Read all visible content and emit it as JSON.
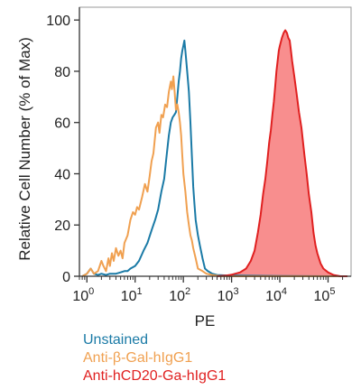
{
  "chart_data": {
    "type": "area",
    "xlabel": "PE",
    "ylabel": "Relative Cell Number (% of Max)",
    "xscale": "log",
    "xlim": [
      0.7,
      300000
    ],
    "ylim": [
      0,
      105
    ],
    "grid": false,
    "legend_placement": "bottom-left",
    "x_ticks": [
      {
        "value": 1,
        "base": "10",
        "exp": "0"
      },
      {
        "value": 10,
        "base": "10",
        "exp": "1"
      },
      {
        "value": 100,
        "base": "10",
        "exp": "2"
      },
      {
        "value": 1000,
        "base": "10",
        "exp": "3"
      },
      {
        "value": 10000,
        "base": "10",
        "exp": "4"
      },
      {
        "value": 100000,
        "base": "10",
        "exp": "5"
      }
    ],
    "y_ticks": [
      {
        "value": 0,
        "label": "0"
      },
      {
        "value": 20,
        "label": "20"
      },
      {
        "value": 40,
        "label": "40"
      },
      {
        "value": 60,
        "label": "60"
      },
      {
        "value": 80,
        "label": "80"
      },
      {
        "value": 100,
        "label": "100"
      }
    ],
    "series": [
      {
        "name": "Unstained",
        "color": "#1a7aa6",
        "fill": false,
        "points": [
          [
            0.8,
            0
          ],
          [
            1,
            1
          ],
          [
            1.2,
            3
          ],
          [
            1.4,
            1
          ],
          [
            1.7,
            0.5
          ],
          [
            2,
            1
          ],
          [
            2.5,
            0.5
          ],
          [
            3,
            1
          ],
          [
            4,
            1
          ],
          [
            5,
            1.5
          ],
          [
            6,
            2
          ],
          [
            7,
            2
          ],
          [
            8,
            3
          ],
          [
            10,
            4
          ],
          [
            12,
            6
          ],
          [
            15,
            10
          ],
          [
            18,
            13
          ],
          [
            22,
            18
          ],
          [
            26,
            22
          ],
          [
            30,
            26
          ],
          [
            35,
            33
          ],
          [
            40,
            38
          ],
          [
            45,
            47
          ],
          [
            50,
            55
          ],
          [
            55,
            60
          ],
          [
            60,
            62
          ],
          [
            65,
            63
          ],
          [
            70,
            64
          ],
          [
            75,
            70
          ],
          [
            80,
            76
          ],
          [
            85,
            80
          ],
          [
            90,
            85
          ],
          [
            95,
            88
          ],
          [
            100,
            90
          ],
          [
            105,
            92
          ],
          [
            110,
            88
          ],
          [
            120,
            80
          ],
          [
            130,
            72
          ],
          [
            140,
            60
          ],
          [
            150,
            47
          ],
          [
            160,
            35
          ],
          [
            170,
            28
          ],
          [
            180,
            22
          ],
          [
            200,
            16
          ],
          [
            220,
            12
          ],
          [
            250,
            7
          ],
          [
            280,
            3
          ],
          [
            320,
            2
          ],
          [
            400,
            1
          ],
          [
            500,
            0.5
          ],
          [
            800,
            0.3
          ],
          [
            2000,
            0.2
          ],
          [
            10000,
            0.1
          ],
          [
            100000,
            0
          ],
          [
            250000,
            0
          ]
        ]
      },
      {
        "name": "Anti-β-Gal-hIgG1",
        "color": "#f0a050",
        "fill": false,
        "points": [
          [
            0.8,
            0
          ],
          [
            1,
            1
          ],
          [
            1.2,
            3
          ],
          [
            1.4,
            1
          ],
          [
            1.7,
            2
          ],
          [
            2,
            6
          ],
          [
            2.2,
            4
          ],
          [
            2.5,
            2
          ],
          [
            2.8,
            7
          ],
          [
            3,
            4
          ],
          [
            3.3,
            9
          ],
          [
            3.6,
            6
          ],
          [
            4,
            11
          ],
          [
            4.5,
            8
          ],
          [
            5,
            10
          ],
          [
            5.5,
            7
          ],
          [
            6,
            13
          ],
          [
            7,
            16
          ],
          [
            8,
            22
          ],
          [
            9,
            25
          ],
          [
            10,
            24
          ],
          [
            11,
            27
          ],
          [
            12,
            26
          ],
          [
            14,
            31
          ],
          [
            16,
            36
          ],
          [
            18,
            33
          ],
          [
            20,
            39
          ],
          [
            22,
            45
          ],
          [
            24,
            48
          ],
          [
            27,
            58
          ],
          [
            30,
            60
          ],
          [
            32,
            56
          ],
          [
            35,
            63
          ],
          [
            38,
            62
          ],
          [
            42,
            67
          ],
          [
            46,
            66
          ],
          [
            50,
            72
          ],
          [
            55,
            76
          ],
          [
            58,
            73
          ],
          [
            62,
            78
          ],
          [
            66,
            72
          ],
          [
            70,
            65
          ],
          [
            75,
            67
          ],
          [
            80,
            64
          ],
          [
            85,
            60
          ],
          [
            90,
            55
          ],
          [
            95,
            47
          ],
          [
            100,
            40
          ],
          [
            110,
            33
          ],
          [
            120,
            25
          ],
          [
            130,
            20
          ],
          [
            140,
            16
          ],
          [
            150,
            14
          ],
          [
            160,
            11
          ],
          [
            180,
            7
          ],
          [
            200,
            3
          ],
          [
            250,
            2
          ],
          [
            300,
            1
          ],
          [
            400,
            0.5
          ],
          [
            600,
            0
          ],
          [
            250000,
            0
          ]
        ]
      },
      {
        "name": "Anti-hCD20-Ga-hIgG1",
        "color": "#e02020",
        "fill": true,
        "fill_color": "#f88e8e",
        "points": [
          [
            500,
            0
          ],
          [
            800,
            0.3
          ],
          [
            1000,
            0.6
          ],
          [
            1500,
            1.5
          ],
          [
            2000,
            3
          ],
          [
            2500,
            6
          ],
          [
            3000,
            10
          ],
          [
            3500,
            17
          ],
          [
            4000,
            24
          ],
          [
            4500,
            32
          ],
          [
            5000,
            38
          ],
          [
            5500,
            45
          ],
          [
            6000,
            52
          ],
          [
            6500,
            57
          ],
          [
            7000,
            63
          ],
          [
            7500,
            68
          ],
          [
            8000,
            74
          ],
          [
            8500,
            80
          ],
          [
            9000,
            84
          ],
          [
            9500,
            88
          ],
          [
            10000,
            90
          ],
          [
            11000,
            93
          ],
          [
            12000,
            95
          ],
          [
            13000,
            96
          ],
          [
            14000,
            95
          ],
          [
            15000,
            93
          ],
          [
            16000,
            92
          ],
          [
            17000,
            88
          ],
          [
            18000,
            84
          ],
          [
            20000,
            78
          ],
          [
            22000,
            72
          ],
          [
            25000,
            64
          ],
          [
            28000,
            58
          ],
          [
            32000,
            48
          ],
          [
            36000,
            40
          ],
          [
            40000,
            32
          ],
          [
            45000,
            25
          ],
          [
            50000,
            17
          ],
          [
            55000,
            12
          ],
          [
            60000,
            9
          ],
          [
            70000,
            5
          ],
          [
            80000,
            3
          ],
          [
            100000,
            1.5
          ],
          [
            130000,
            0.5
          ],
          [
            180000,
            0
          ],
          [
            250000,
            0
          ]
        ]
      }
    ]
  }
}
